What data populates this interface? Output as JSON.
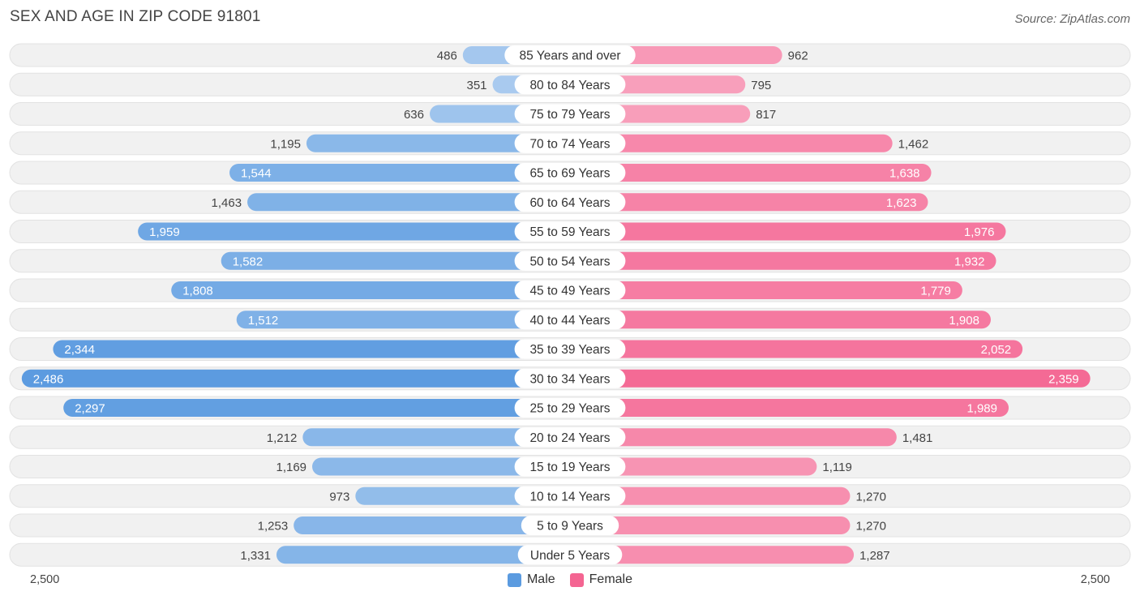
{
  "title": "SEX AND AGE IN ZIP CODE 91801",
  "source": "Source: ZipAtlas.com",
  "colors": {
    "male": "#5b9be0",
    "female": "#f46592",
    "track": "#eeeeee"
  },
  "chart_data": {
    "type": "bar",
    "orientation": "horizontal-diverging",
    "title": "SEX AND AGE IN ZIP CODE 91801",
    "categories": [
      "85 Years and over",
      "80 to 84 Years",
      "75 to 79 Years",
      "70 to 74 Years",
      "65 to 69 Years",
      "60 to 64 Years",
      "55 to 59 Years",
      "50 to 54 Years",
      "45 to 49 Years",
      "40 to 44 Years",
      "35 to 39 Years",
      "30 to 34 Years",
      "25 to 29 Years",
      "20 to 24 Years",
      "15 to 19 Years",
      "10 to 14 Years",
      "5 to 9 Years",
      "Under 5 Years"
    ],
    "series": [
      {
        "name": "Male",
        "values": [
          486,
          351,
          636,
          1195,
          1544,
          1463,
          1959,
          1582,
          1808,
          1512,
          2344,
          2486,
          2297,
          1212,
          1169,
          973,
          1253,
          1331
        ],
        "labels": [
          "486",
          "351",
          "636",
          "1,195",
          "1,544",
          "1,463",
          "1,959",
          "1,582",
          "1,808",
          "1,512",
          "2,344",
          "2,486",
          "2,297",
          "1,212",
          "1,169",
          "973",
          "1,253",
          "1,331"
        ]
      },
      {
        "name": "Female",
        "values": [
          962,
          795,
          817,
          1462,
          1638,
          1623,
          1976,
          1932,
          1779,
          1908,
          2052,
          2359,
          1989,
          1481,
          1119,
          1270,
          1270,
          1287
        ],
        "labels": [
          "962",
          "795",
          "817",
          "1,462",
          "1,638",
          "1,623",
          "1,976",
          "1,932",
          "1,779",
          "1,908",
          "2,052",
          "2,359",
          "1,989",
          "1,481",
          "1,119",
          "1,270",
          "1,270",
          "1,287"
        ]
      }
    ],
    "axis_left_label": "2,500",
    "axis_right_label": "2,500",
    "xlim": [
      0,
      2500
    ],
    "legend": {
      "position": "bottom-center",
      "entries": [
        "Male",
        "Female"
      ]
    }
  }
}
